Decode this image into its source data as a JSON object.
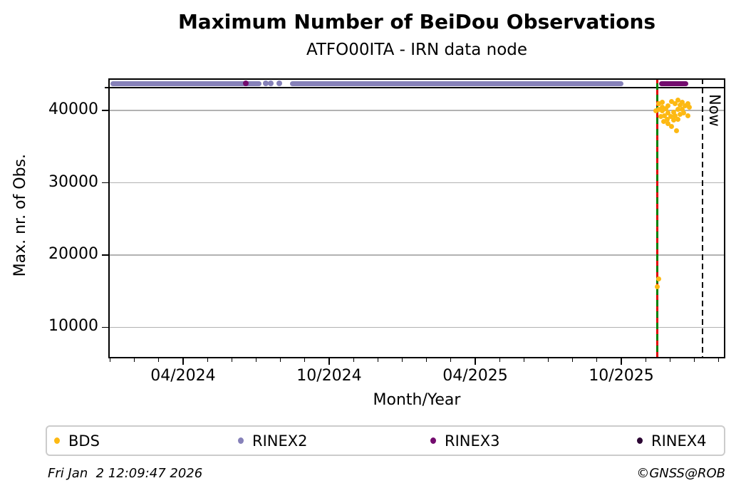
{
  "title": "Maximum Number of BeiDou Observations",
  "subtitle": "ATFO00ITA - IRN data node",
  "footer": {
    "timestamp": "Fri Jan  2 12:09:47 2026",
    "credit": "©GNSS@ROB"
  },
  "chart_data": {
    "type": "scatter",
    "title": "Maximum Number of BeiDou Observations",
    "subtitle": "ATFO00ITA - IRN data node",
    "xlabel": "Month/Year",
    "ylabel": "Max. nr. of Obs.",
    "xlim": [
      2023.994,
      2026.106
    ],
    "ylim": [
      5700,
      44450
    ],
    "x_ticks": [
      {
        "pos": 2024.25,
        "label": "04/2024"
      },
      {
        "pos": 2024.75,
        "label": "10/2024"
      },
      {
        "pos": 2025.25,
        "label": "04/2025"
      },
      {
        "pos": 2025.75,
        "label": "10/2025"
      }
    ],
    "x_minor_tick_interval_months": 1,
    "y_ticks": [
      {
        "pos": 40000,
        "label": "40000"
      },
      {
        "pos": 30000,
        "label": "30000"
      },
      {
        "pos": 20000,
        "label": "20000"
      },
      {
        "pos": 10000,
        "label": "10000"
      }
    ],
    "grid": "horizontal",
    "legend_position": "bottom",
    "colors": {
      "grid": "#b2b2b2",
      "frame": "#000000",
      "threshold": "#000000",
      "event_green": "#008000",
      "event_red": "#e00000",
      "now_line": "#000000"
    },
    "annotations": {
      "threshold_hline": {
        "y": 43150
      },
      "event_line": {
        "x": 2025.872
      },
      "now_line": {
        "x": 2026.028,
        "label": "Now"
      }
    },
    "series": [
      {
        "name": "BDS",
        "color": "#fdb913",
        "points": [
          [
            2025.869,
            40000
          ],
          [
            2025.879,
            40990
          ],
          [
            2025.879,
            40200
          ],
          [
            2025.886,
            39210
          ],
          [
            2025.889,
            40490
          ],
          [
            2025.891,
            41180
          ],
          [
            2025.891,
            40000
          ],
          [
            2025.896,
            38520
          ],
          [
            2025.898,
            39310
          ],
          [
            2025.903,
            40300
          ],
          [
            2025.908,
            38820
          ],
          [
            2025.91,
            40690
          ],
          [
            2025.91,
            39700
          ],
          [
            2025.91,
            38230
          ],
          [
            2025.92,
            39210
          ],
          [
            2025.923,
            41280
          ],
          [
            2025.923,
            37830
          ],
          [
            2025.928,
            39800
          ],
          [
            2025.928,
            38720
          ],
          [
            2025.935,
            40990
          ],
          [
            2025.935,
            39310
          ],
          [
            2025.94,
            37240
          ],
          [
            2025.945,
            41480
          ],
          [
            2025.945,
            40200
          ],
          [
            2025.945,
            38820
          ],
          [
            2025.952,
            40790
          ],
          [
            2025.952,
            39510
          ],
          [
            2025.959,
            41180
          ],
          [
            2025.959,
            40200
          ],
          [
            2025.964,
            39700
          ],
          [
            2025.969,
            40690
          ],
          [
            2025.977,
            40990
          ],
          [
            2025.977,
            39310
          ],
          [
            2025.982,
            40490
          ],
          [
            2025.879,
            16650
          ],
          [
            2025.874,
            15570
          ]
        ]
      },
      {
        "name": "RINEX2",
        "color": "#8681b9",
        "band_value": 43750,
        "segments": [
          [
            2024.001,
            2024.518
          ],
          [
            2024.616,
            2025.757
          ]
        ],
        "dots": [
          2024.533,
          2024.55,
          2024.58
        ]
      },
      {
        "name": "RINEX3",
        "color": "#730b6e",
        "band_value": 43750,
        "segments": [
          [
            2025.879,
            2025.979
          ]
        ],
        "dots": [
          2024.465
        ]
      },
      {
        "name": "RINEX4",
        "color": "#2b0633",
        "band_value": 43750,
        "segments": [],
        "dots": []
      }
    ]
  }
}
